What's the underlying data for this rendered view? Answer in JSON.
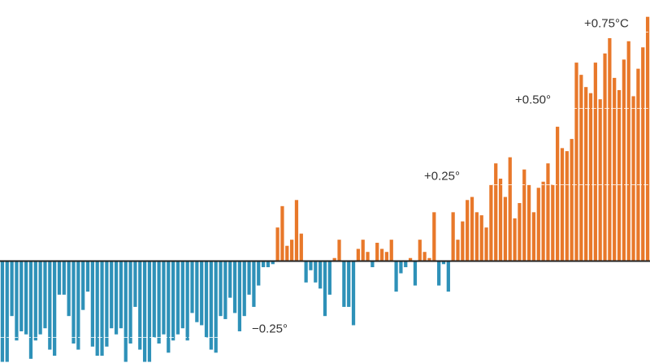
{
  "chart_data": {
    "type": "bar",
    "unit": "°C",
    "baseline": 0,
    "ylim": [
      -0.33,
      0.82
    ],
    "grid": true,
    "gridlines": [
      -0.25,
      0.25,
      0.5,
      0.75
    ],
    "tick_labels": [
      {
        "value": -0.25,
        "text": "−0.25°"
      },
      {
        "value": 0.25,
        "text": "+0.25°"
      },
      {
        "value": 0.5,
        "text": "+0.50°"
      },
      {
        "value": 0.75,
        "text": "+0.75°C"
      }
    ],
    "colors": {
      "positive": "#e8782a",
      "negative": "#2e91b8",
      "grid": "#ffffff",
      "baseline": "#222222"
    },
    "values": [
      -0.33,
      -0.33,
      -0.18,
      -0.26,
      -0.23,
      -0.24,
      -0.32,
      -0.26,
      -0.24,
      -0.22,
      -0.29,
      -0.31,
      -0.11,
      -0.11,
      -0.18,
      -0.27,
      -0.29,
      -0.16,
      -0.1,
      -0.28,
      -0.31,
      -0.31,
      -0.28,
      -0.22,
      -0.24,
      -0.22,
      -0.33,
      -0.27,
      -0.15,
      -0.29,
      -0.33,
      -0.33,
      -0.25,
      -0.27,
      -0.24,
      -0.3,
      -0.26,
      -0.24,
      -0.22,
      -0.26,
      -0.17,
      -0.2,
      -0.21,
      -0.25,
      -0.29,
      -0.3,
      -0.18,
      -0.19,
      -0.12,
      -0.17,
      -0.23,
      -0.18,
      -0.11,
      -0.15,
      -0.08,
      -0.02,
      -0.02,
      -0.01,
      0.11,
      0.18,
      0.05,
      0.07,
      0.2,
      0.09,
      -0.07,
      -0.03,
      -0.07,
      -0.09,
      -0.18,
      -0.11,
      0.01,
      0.07,
      -0.15,
      -0.15,
      -0.21,
      0.04,
      0.07,
      0.03,
      -0.02,
      0.06,
      0.04,
      0.03,
      0.07,
      -0.1,
      -0.04,
      -0.02,
      0.01,
      -0.08,
      0.07,
      0.03,
      0.01,
      0.16,
      -0.08,
      -0.01,
      -0.1,
      0.16,
      0.07,
      0.13,
      0.2,
      0.21,
      0.16,
      0.15,
      0.11,
      0.25,
      0.32,
      0.27,
      0.21,
      0.34,
      0.14,
      0.19,
      0.3,
      0.25,
      0.16,
      0.24,
      0.26,
      0.32,
      0.25,
      0.44,
      0.37,
      0.36,
      0.4,
      0.65,
      0.61,
      0.57,
      0.55,
      0.65,
      0.53,
      0.68,
      0.73,
      0.6,
      0.56,
      0.66,
      0.72,
      0.54,
      0.63,
      0.7,
      0.8
    ]
  }
}
